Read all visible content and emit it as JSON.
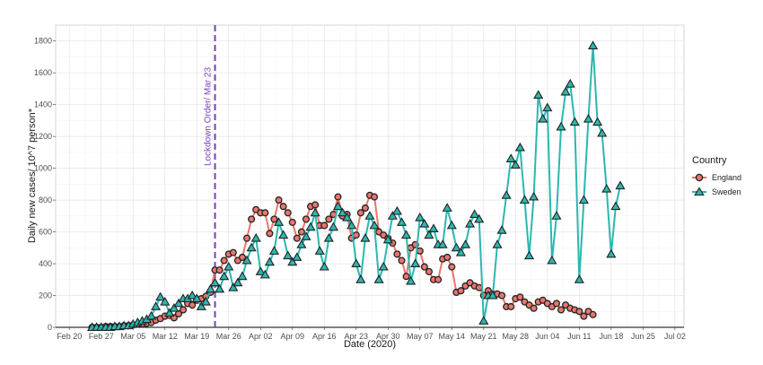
{
  "chart_data": {
    "type": "line",
    "xlabel": "Date (2020)",
    "ylabel": "Daily new cases/ 10^7 person*",
    "ylim": [
      0,
      1900
    ],
    "yticks": [
      0,
      200,
      400,
      600,
      800,
      1000,
      1200,
      1400,
      1600,
      1800
    ],
    "xlim": [
      "2020-02-17",
      "2020-07-04"
    ],
    "xticks": [
      {
        "date": "2020-02-20",
        "label": "Feb 20"
      },
      {
        "date": "2020-02-27",
        "label": "Feb 27"
      },
      {
        "date": "2020-03-05",
        "label": "Mar 05"
      },
      {
        "date": "2020-03-12",
        "label": "Mar 12"
      },
      {
        "date": "2020-03-19",
        "label": "Mar 19"
      },
      {
        "date": "2020-03-26",
        "label": "Mar 26"
      },
      {
        "date": "2020-04-02",
        "label": "Apr 02"
      },
      {
        "date": "2020-04-09",
        "label": "Apr 09"
      },
      {
        "date": "2020-04-16",
        "label": "Apr 16"
      },
      {
        "date": "2020-04-23",
        "label": "Apr 23"
      },
      {
        "date": "2020-04-30",
        "label": "Apr 30"
      },
      {
        "date": "2020-05-07",
        "label": "May 07"
      },
      {
        "date": "2020-05-14",
        "label": "May 14"
      },
      {
        "date": "2020-05-21",
        "label": "May 21"
      },
      {
        "date": "2020-05-28",
        "label": "May 28"
      },
      {
        "date": "2020-06-04",
        "label": "Jun 04"
      },
      {
        "date": "2020-06-11",
        "label": "Jun 11"
      },
      {
        "date": "2020-06-18",
        "label": "Jun 18"
      },
      {
        "date": "2020-06-25",
        "label": "Jun 25"
      },
      {
        "date": "2020-07-02",
        "label": "Jul 02"
      }
    ],
    "annotation": {
      "date": "2020-03-23",
      "label": "Lockdown Order/ Mar 23",
      "color": "#7b3fbf"
    },
    "grid": true,
    "legend": {
      "title": "Country",
      "position": "right"
    },
    "series": [
      {
        "name": "England",
        "color": "#e8766f",
        "marker": "circle",
        "start_date": "2020-02-25",
        "values": [
          0,
          0,
          0,
          5,
          5,
          5,
          5,
          10,
          10,
          15,
          20,
          20,
          25,
          30,
          45,
          55,
          70,
          75,
          60,
          85,
          110,
          150,
          140,
          170,
          180,
          195,
          220,
          360,
          360,
          420,
          460,
          470,
          420,
          440,
          560,
          680,
          740,
          720,
          720,
          590,
          680,
          800,
          760,
          720,
          660,
          560,
          600,
          680,
          760,
          770,
          640,
          640,
          680,
          710,
          820,
          700,
          710,
          560,
          580,
          720,
          750,
          830,
          820,
          600,
          580,
          560,
          530,
          460,
          420,
          320,
          500,
          520,
          480,
          380,
          350,
          300,
          300,
          430,
          440,
          380,
          220,
          230,
          260,
          280,
          260,
          250,
          200,
          230,
          210,
          210,
          200,
          130,
          130,
          180,
          190,
          160,
          140,
          120,
          160,
          170,
          150,
          130,
          150,
          110,
          140,
          120,
          110,
          100,
          70,
          100,
          80
        ]
      },
      {
        "name": "Sweden",
        "color": "#2cb7b0",
        "marker": "triangle",
        "start_date": "2020-02-25",
        "values": [
          0,
          0,
          0,
          0,
          0,
          5,
          5,
          10,
          10,
          20,
          30,
          40,
          50,
          70,
          130,
          190,
          160,
          90,
          120,
          150,
          180,
          180,
          200,
          180,
          130,
          160,
          240,
          280,
          240,
          320,
          380,
          250,
          280,
          320,
          420,
          500,
          560,
          350,
          330,
          410,
          480,
          660,
          580,
          450,
          410,
          440,
          520,
          570,
          630,
          720,
          480,
          380,
          560,
          630,
          760,
          720,
          690,
          640,
          400,
          300,
          560,
          700,
          640,
          300,
          380,
          550,
          700,
          730,
          660,
          580,
          290,
          400,
          690,
          650,
          580,
          620,
          520,
          520,
          750,
          640,
          500,
          470,
          520,
          650,
          710,
          680,
          40,
          200,
          200,
          520,
          610,
          830,
          1060,
          1020,
          1130,
          800,
          450,
          820,
          1460,
          1310,
          1380,
          420,
          700,
          1260,
          1480,
          1530,
          1290,
          300,
          800,
          1310,
          1770,
          1290,
          1220,
          870,
          460,
          760,
          890
        ]
      }
    ]
  }
}
